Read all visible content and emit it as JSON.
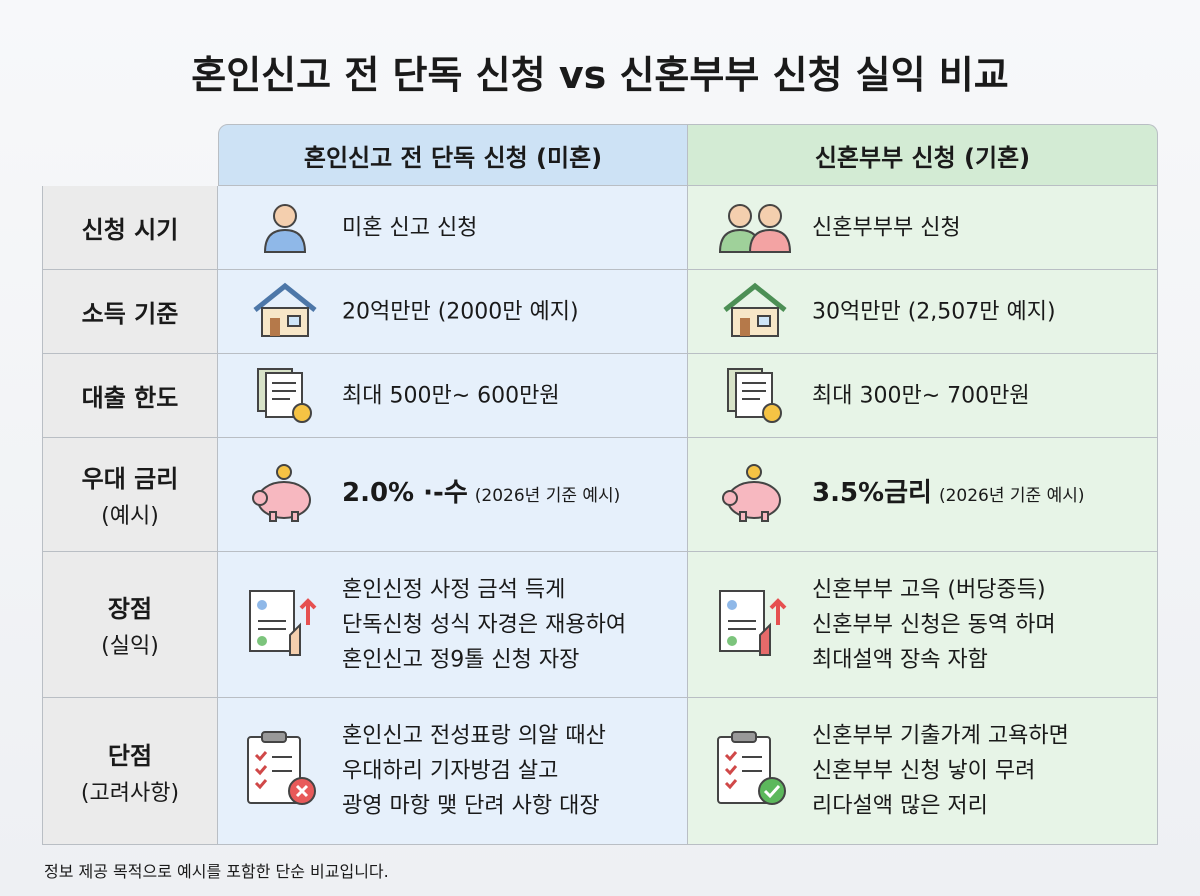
{
  "title": "혼인신고 전 단독 신청 vs 신혼부부 신청 실익 비교",
  "table": {
    "columns": [
      "혼인신고 전 단독 신청 (미혼)",
      "신혼부부 신청 (기혼)"
    ],
    "rows": [
      {
        "label": [
          "신청 시기"
        ],
        "cells": [
          {
            "lines": [
              "미혼 신고 신청"
            ]
          },
          {
            "lines": [
              "신혼부부부 신청"
            ]
          }
        ]
      },
      {
        "label": [
          "소득 기준"
        ],
        "cells": [
          {
            "lines": [
              "20억만만 (2000만 예지)"
            ]
          },
          {
            "lines": [
              "30억만만 (2,507만 예지)"
            ]
          }
        ]
      },
      {
        "label": [
          "대출 한도"
        ],
        "cells": [
          {
            "lines": [
              "최대 500만~ 600만원"
            ]
          },
          {
            "lines": [
              "최대 300만~ 700만원"
            ]
          }
        ]
      },
      {
        "label": [
          "우대 금리",
          "(예시)"
        ],
        "cells": [
          {
            "lines": [
              "2.0% ·-수"
            ],
            "note": "(2026년 기준 예시)"
          },
          {
            "lines": [
              "3.5%금리"
            ],
            "note": "(2026년 기준 예시)"
          }
        ]
      },
      {
        "label": [
          "장점",
          "(실익)"
        ],
        "cells": [
          {
            "lines": [
              "혼인신정 사정 금석 득게",
              "단독신청 성식 자경은 재용하여",
              "혼인신고 정9톨 신청 자장"
            ]
          },
          {
            "lines": [
              "신혼부부 고윽 (버당중득)",
              "신혼부부 신청은 동역 하며",
              "최대설액 장속 자함"
            ]
          }
        ]
      },
      {
        "label": [
          "단점",
          "(고려사항)"
        ],
        "cells": [
          {
            "lines": [
              "혼인신고 전성표랑 의알 때산",
              "우대하리 기자방검 살고",
              "광영 마항  맺 단려 사항 대장"
            ]
          },
          {
            "lines": [
              "신혼부부 기출가계 고욕하면",
              "신혼부부 신청 낳이 무려",
              "리다설액 많은 저리"
            ]
          }
        ]
      }
    ]
  },
  "footnote": "정보 제공 목적으로 예시를 포함한 단순 비교입니다."
}
